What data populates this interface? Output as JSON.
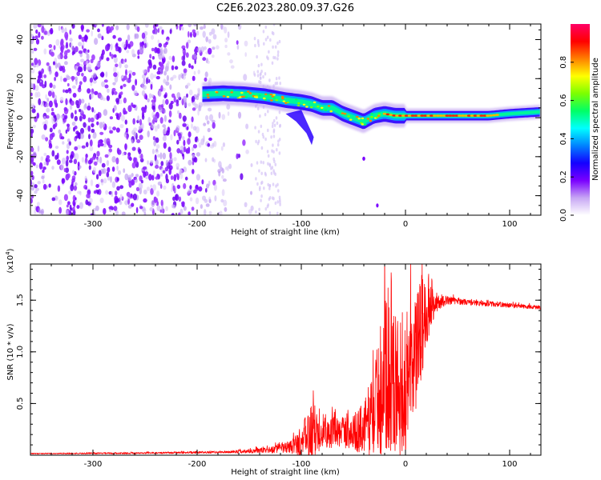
{
  "title": "C2E6.2023.280.09.37.G26",
  "chart_data": [
    {
      "type": "heatmap",
      "xlabel": "Height of straight line (km)",
      "ylabel": "Frequency (Hz)",
      "xlim": [
        -360,
        130
      ],
      "ylim": [
        -50,
        48
      ],
      "x_ticks": [
        -300,
        -200,
        -100,
        0,
        100
      ],
      "y_ticks": [
        -40,
        -20,
        0,
        20,
        40
      ],
      "colorbar": {
        "label": "Normalized spectral amplitude",
        "range": [
          0.0,
          1.0
        ],
        "ticks": [
          0.0,
          0.2,
          0.4,
          0.6,
          0.8
        ],
        "colors": [
          "#ffffff",
          "#c7a6f4",
          "#7a00ff",
          "#1400ff",
          "#0083ff",
          "#00ffff",
          "#00ff66",
          "#7cff00",
          "#ffff00",
          "#ff8000",
          "#ff0000",
          "#ff0066"
        ]
      },
      "ridge": {
        "x": [
          -195,
          -175,
          -155,
          -135,
          -115,
          -100,
          -90,
          -80,
          -70,
          -60,
          -50,
          -40,
          -30,
          -20,
          -10,
          0,
          20,
          40,
          60,
          80,
          100,
          130
        ],
        "freq": [
          12,
          12.5,
          12,
          11,
          9,
          8,
          7,
          5,
          5,
          2,
          0,
          -2,
          1,
          2,
          1,
          1,
          1,
          1,
          1,
          1,
          2,
          3
        ]
      }
    },
    {
      "type": "line",
      "xlabel": "Height of straight line (km)",
      "ylabel": "SNR (10 * v/v)",
      "y_multiplier": "(x10",
      "y_multiplier_exp": "4",
      "xlim": [
        -360,
        130
      ],
      "ylim": [
        0.0,
        1.85
      ],
      "x_ticks": [
        -300,
        -200,
        -100,
        0,
        100
      ],
      "y_ticks": [
        0.5,
        1.0,
        1.5
      ],
      "series": [
        {
          "color": "#ff0000",
          "envelope": {
            "x": [
              -360,
              -250,
              -170,
              -130,
              -110,
              -100,
              -90,
              -80,
              -70,
              -60,
              -50,
              -40,
              -30,
              -25,
              -20,
              -15,
              -10,
              -5,
              0,
              5,
              10,
              15,
              20,
              25,
              30,
              40,
              50,
              70,
              90,
              110,
              130
            ],
            "base": [
              0.015,
              0.02,
              0.03,
              0.05,
              0.08,
              0.12,
              0.22,
              0.25,
              0.22,
              0.22,
              0.22,
              0.25,
              0.45,
              0.6,
              0.75,
              0.8,
              0.7,
              0.65,
              0.5,
              0.8,
              0.95,
              1.2,
              1.4,
              1.45,
              1.47,
              1.5,
              1.49,
              1.47,
              1.46,
              1.44,
              1.43
            ],
            "amp": [
              0.005,
              0.008,
              0.01,
              0.03,
              0.06,
              0.15,
              0.3,
              0.18,
              0.15,
              0.15,
              0.18,
              0.25,
              0.45,
              0.6,
              0.75,
              0.75,
              0.7,
              0.7,
              0.5,
              0.6,
              0.7,
              0.55,
              0.35,
              0.2,
              0.08,
              0.04,
              0.03,
              0.025,
              0.025,
              0.02,
              0.02
            ]
          }
        }
      ]
    }
  ]
}
